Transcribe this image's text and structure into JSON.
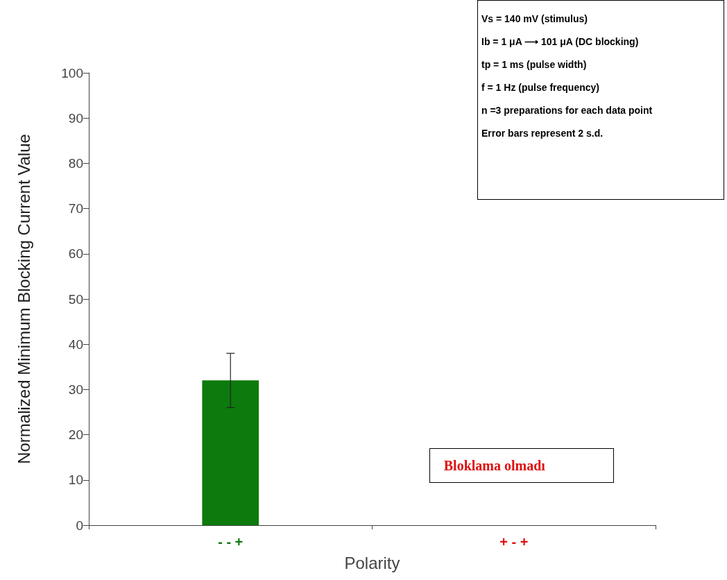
{
  "chart_data": {
    "type": "bar",
    "xlabel": "Polarity",
    "ylabel": "Normalized Minimum Blocking Current Value",
    "categories": [
      "- - +",
      "+ - +"
    ],
    "values": [
      32,
      null
    ],
    "errors": [
      6,
      null
    ],
    "colors": [
      "#0c7a0c",
      "#e01010"
    ],
    "ylim": [
      0,
      100
    ],
    "yticks": [
      0,
      10,
      20,
      30,
      40,
      50,
      60,
      70,
      80,
      90,
      100
    ],
    "grid": false,
    "annotations": [
      "Vs = 140 mV (stimulus)",
      "Ib = 1 μA ⟶ 101 μA (DC blocking)",
      "tp = 1 ms (pulse width)",
      "f = 1 Hz (pulse frequency)",
      "n =3 preparations for each data point",
      "Error bars represent 2 s.d.",
      "Bloklama olmadı"
    ]
  }
}
